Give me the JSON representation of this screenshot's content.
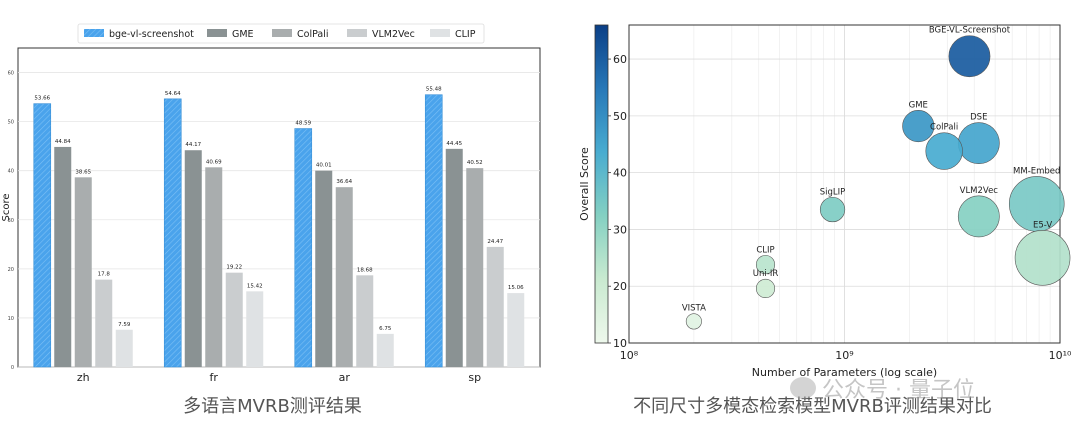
{
  "captions": {
    "left": "多语言MVRB测评结果",
    "right": "不同尺寸多模态检索模型MVRB评测结果对比"
  },
  "watermark": {
    "text": "公众号 · 量子位",
    "icon": "wechat-icon"
  },
  "chart_data": [
    {
      "type": "bar",
      "ylabel": "Score",
      "xlabel": "",
      "ylim": [
        0,
        65
      ],
      "yticks": [
        0,
        10,
        20,
        30,
        40,
        50,
        60
      ],
      "categories": [
        "zh",
        "fr",
        "ar",
        "sp"
      ],
      "legend_position": "top-center",
      "grid": true,
      "series": [
        {
          "name": "bge-vl-screenshot",
          "color": "#4aa3ec",
          "hatched": true,
          "values": [
            53.66,
            54.64,
            48.59,
            55.48
          ]
        },
        {
          "name": "GME",
          "color": "#8a9293",
          "values": [
            44.84,
            44.17,
            40.01,
            44.45
          ]
        },
        {
          "name": "ColPali",
          "color": "#a9adae",
          "values": [
            38.65,
            40.69,
            36.64,
            40.52
          ]
        },
        {
          "name": "VLM2Vec",
          "color": "#cacdcf",
          "values": [
            17.8,
            19.22,
            18.68,
            24.47
          ]
        },
        {
          "name": "CLIP",
          "color": "#dfe2e4",
          "values": [
            7.59,
            15.42,
            6.75,
            15.06
          ]
        }
      ]
    },
    {
      "type": "scatter",
      "xlabel": "Number of Parameters (log scale)",
      "ylabel": "Overall Score",
      "xscale": "log",
      "xlim": [
        100000000,
        10000000000
      ],
      "xticklabels": [
        "10⁸",
        "10⁹",
        "10¹⁰"
      ],
      "ylim": [
        10,
        66
      ],
      "yticks": [
        10,
        20,
        30,
        40,
        50,
        60
      ],
      "colorbar": {
        "min": 10,
        "max": 66,
        "low_color": "#eef8ec",
        "high_color": "#0b3f86"
      },
      "grid": true,
      "points": [
        {
          "label": "BGE-VL-Screenshot",
          "x": 3800000000,
          "y": 60.5,
          "size": 4
        },
        {
          "label": "GME",
          "x": 2200000000,
          "y": 48.2,
          "size": 2
        },
        {
          "label": "ColPali",
          "x": 2900000000,
          "y": 43.8,
          "size": 3
        },
        {
          "label": "DSE",
          "x": 4200000000,
          "y": 45.2,
          "size": 4
        },
        {
          "label": "SigLIP",
          "x": 880000000,
          "y": 33.5,
          "size": 1
        },
        {
          "label": "VLM2Vec",
          "x": 4200000000,
          "y": 32.3,
          "size": 4
        },
        {
          "label": "MM-Embed",
          "x": 7800000000,
          "y": 34.5,
          "size": 8
        },
        {
          "label": "E5-V",
          "x": 8300000000,
          "y": 25.0,
          "size": 8
        },
        {
          "label": "CLIP",
          "x": 430000000,
          "y": 23.8,
          "size": 0.4
        },
        {
          "label": "Uni-IR",
          "x": 430000000,
          "y": 19.6,
          "size": 0.4
        },
        {
          "label": "VISTA",
          "x": 200000000,
          "y": 13.8,
          "size": 0.2
        }
      ]
    }
  ]
}
